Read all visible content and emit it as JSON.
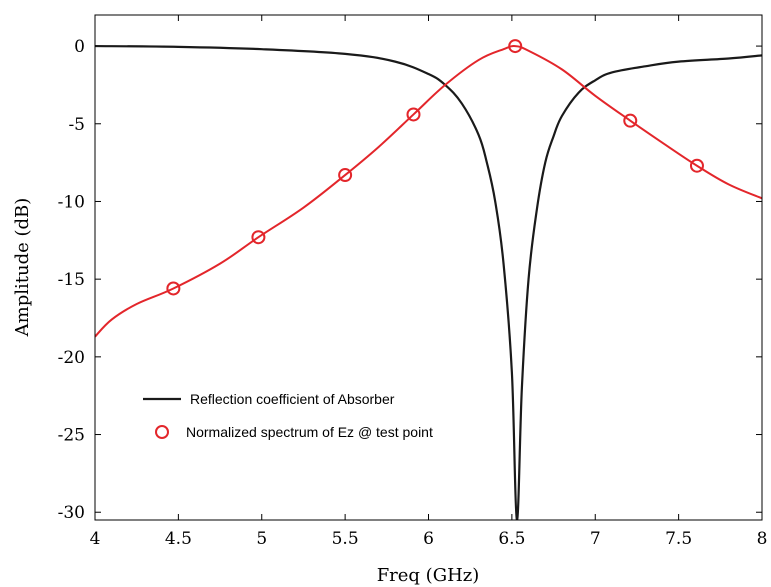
{
  "chart_data": {
    "type": "line",
    "title": "",
    "xlabel": "Freq (GHz)",
    "ylabel": "Amplitude (dB)",
    "xlim": [
      4,
      8
    ],
    "ylim": [
      -30.5,
      2
    ],
    "xticks": [
      4,
      4.5,
      5,
      5.5,
      6,
      6.5,
      7,
      7.5,
      8
    ],
    "xtick_labels": [
      "4",
      "4.5",
      "5",
      "5.5",
      "6",
      "6.5",
      "7",
      "7.5",
      "8"
    ],
    "yticks": [
      0,
      -5,
      -10,
      -15,
      -20,
      -25,
      -30
    ],
    "ytick_labels": [
      "0",
      "-5",
      "-10",
      "-15",
      "-20",
      "-25",
      "-30"
    ],
    "grid": false,
    "legend_position": "lower-left",
    "series": [
      {
        "name": "Reflection coefficient  of Absorber",
        "color": "#1a1a1a",
        "style": "line",
        "x": [
          4.0,
          4.5,
          5.0,
          5.5,
          5.8,
          6.0,
          6.1,
          6.2,
          6.3,
          6.35,
          6.4,
          6.45,
          6.5,
          6.53,
          6.56,
          6.6,
          6.65,
          6.7,
          6.75,
          6.8,
          6.9,
          7.0,
          7.1,
          7.3,
          7.5,
          7.8,
          8.0
        ],
        "y": [
          0.0,
          -0.05,
          -0.2,
          -0.5,
          -1.0,
          -1.8,
          -2.5,
          -3.7,
          -5.7,
          -7.5,
          -10.0,
          -14.0,
          -21.0,
          -30.5,
          -22.0,
          -15.0,
          -10.5,
          -7.5,
          -5.8,
          -4.5,
          -3.0,
          -2.2,
          -1.7,
          -1.3,
          -1.0,
          -0.8,
          -0.6
        ]
      },
      {
        "name": "Normalized spectrum of Ez @ test point",
        "color": "#e3262b",
        "style": "line-with-markers",
        "x": [
          4.0,
          4.1,
          4.25,
          4.47,
          4.75,
          4.98,
          5.25,
          5.5,
          5.7,
          5.91,
          6.1,
          6.3,
          6.45,
          6.52,
          6.6,
          6.8,
          7.0,
          7.21,
          7.4,
          7.61,
          7.8,
          8.0
        ],
        "y": [
          -18.7,
          -17.6,
          -16.6,
          -15.6,
          -14.0,
          -12.3,
          -10.4,
          -8.3,
          -6.5,
          -4.4,
          -2.5,
          -0.9,
          -0.2,
          0.0,
          -0.3,
          -1.5,
          -3.2,
          -4.8,
          -6.2,
          -7.7,
          -8.9,
          -9.8
        ],
        "markers_x": [
          4.47,
          4.98,
          5.5,
          5.91,
          6.52,
          7.21,
          7.61
        ],
        "markers_y": [
          -15.6,
          -12.3,
          -8.3,
          -4.4,
          0.0,
          -4.8,
          -7.7
        ]
      }
    ]
  }
}
